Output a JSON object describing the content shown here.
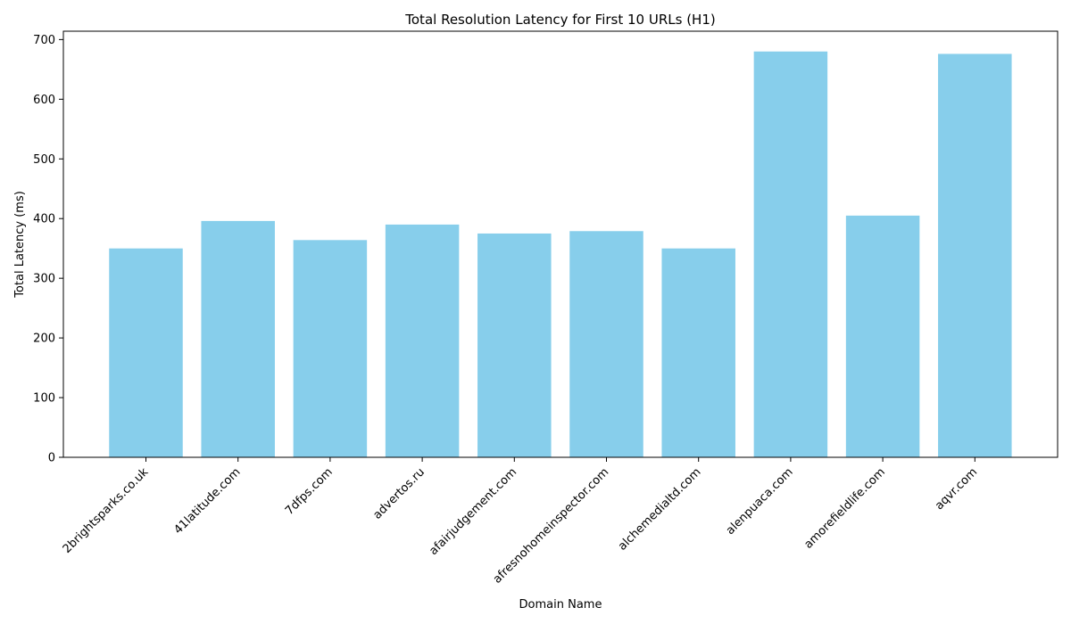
{
  "chart_data": {
    "type": "bar",
    "title": "Total Resolution Latency for First 10 URLs (H1)",
    "xlabel": "Domain Name",
    "ylabel": "Total Latency (ms)",
    "categories": [
      "2brightsparks.co.uk",
      "41latitude.com",
      "7dfps.com",
      "advertos.ru",
      "afairjudgement.com",
      "afresnohomeinspector.com",
      "alchemedialtd.com",
      "alenpuaca.com",
      "amorefieldlife.com",
      "aqvr.com"
    ],
    "values": [
      350,
      396,
      364,
      390,
      375,
      379,
      350,
      680,
      405,
      676
    ],
    "ylim": [
      0,
      714
    ],
    "yticks": [
      0,
      100,
      200,
      300,
      400,
      500,
      600,
      700
    ],
    "grid": false,
    "bar_color": "#87CEEB"
  }
}
